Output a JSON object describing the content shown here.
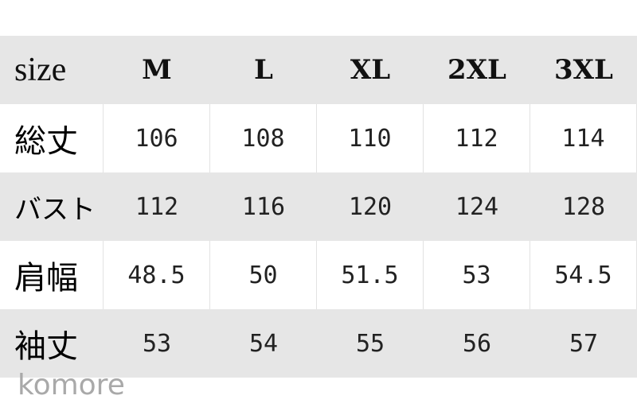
{
  "table": {
    "header": [
      "size",
      "M",
      "L",
      "XL",
      "2XL",
      "3XL"
    ],
    "rows": [
      {
        "label": "総丈",
        "values": [
          "106",
          "108",
          "110",
          "112",
          "114"
        ]
      },
      {
        "label": "バスト",
        "values": [
          "112",
          "116",
          "120",
          "124",
          "128"
        ]
      },
      {
        "label": "肩幅",
        "values": [
          "48.5",
          "50",
          "51.5",
          "53",
          "54.5"
        ]
      },
      {
        "label": "袖丈",
        "values": [
          "53",
          "54",
          "55",
          "56",
          "57"
        ]
      }
    ]
  },
  "watermark": "komore",
  "colors": {
    "band": "#e6e6e6",
    "text": "#222222",
    "watermark": "#a9a9a9"
  }
}
